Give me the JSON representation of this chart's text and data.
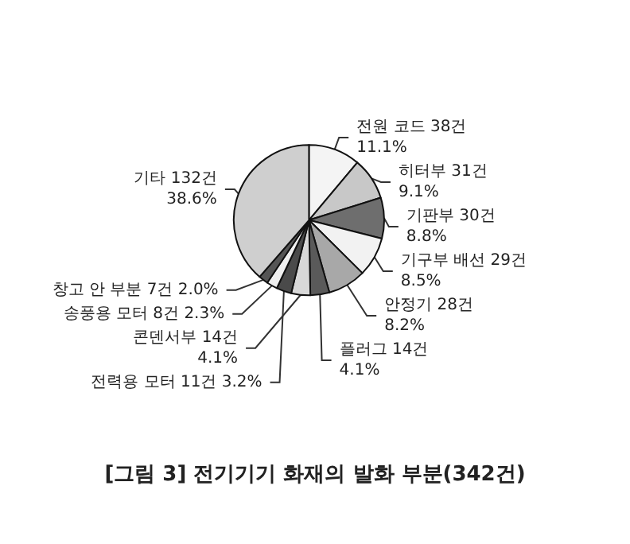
{
  "chart_data": {
    "type": "pie",
    "title": "[그림 3] 전기기기 화재의 발화 부분(342건)",
    "categories": [
      "전원 코드",
      "히터부",
      "기판부",
      "기구부 배선",
      "안정기",
      "플러그",
      "콘덴서부",
      "전력용 모터",
      "송풍용 모터",
      "창고 안 부분",
      "기타"
    ],
    "values": [
      38,
      31,
      30,
      29,
      28,
      14,
      14,
      11,
      8,
      7,
      132
    ],
    "value_labels": [
      "38건\n11.1%",
      "31건\n9.1%",
      "30건\n8.8%",
      "29건\n8.5%",
      "28건\n8.2%",
      "14건\n4.1%",
      "14건\n4.1%",
      "11건 3.2%",
      "8건 2.3%",
      "7건 2.0%",
      "132건\n38.6%"
    ],
    "colors": [
      "#f4f4f4",
      "#c8c8c8",
      "#6e6e6e",
      "#f2f2f2",
      "#a8a8a8",
      "#5a5a5a",
      "#d8d8d8",
      "#4a4a4a",
      "#f0f0f0",
      "#555555",
      "#cfcfcf"
    ],
    "legend": false
  }
}
